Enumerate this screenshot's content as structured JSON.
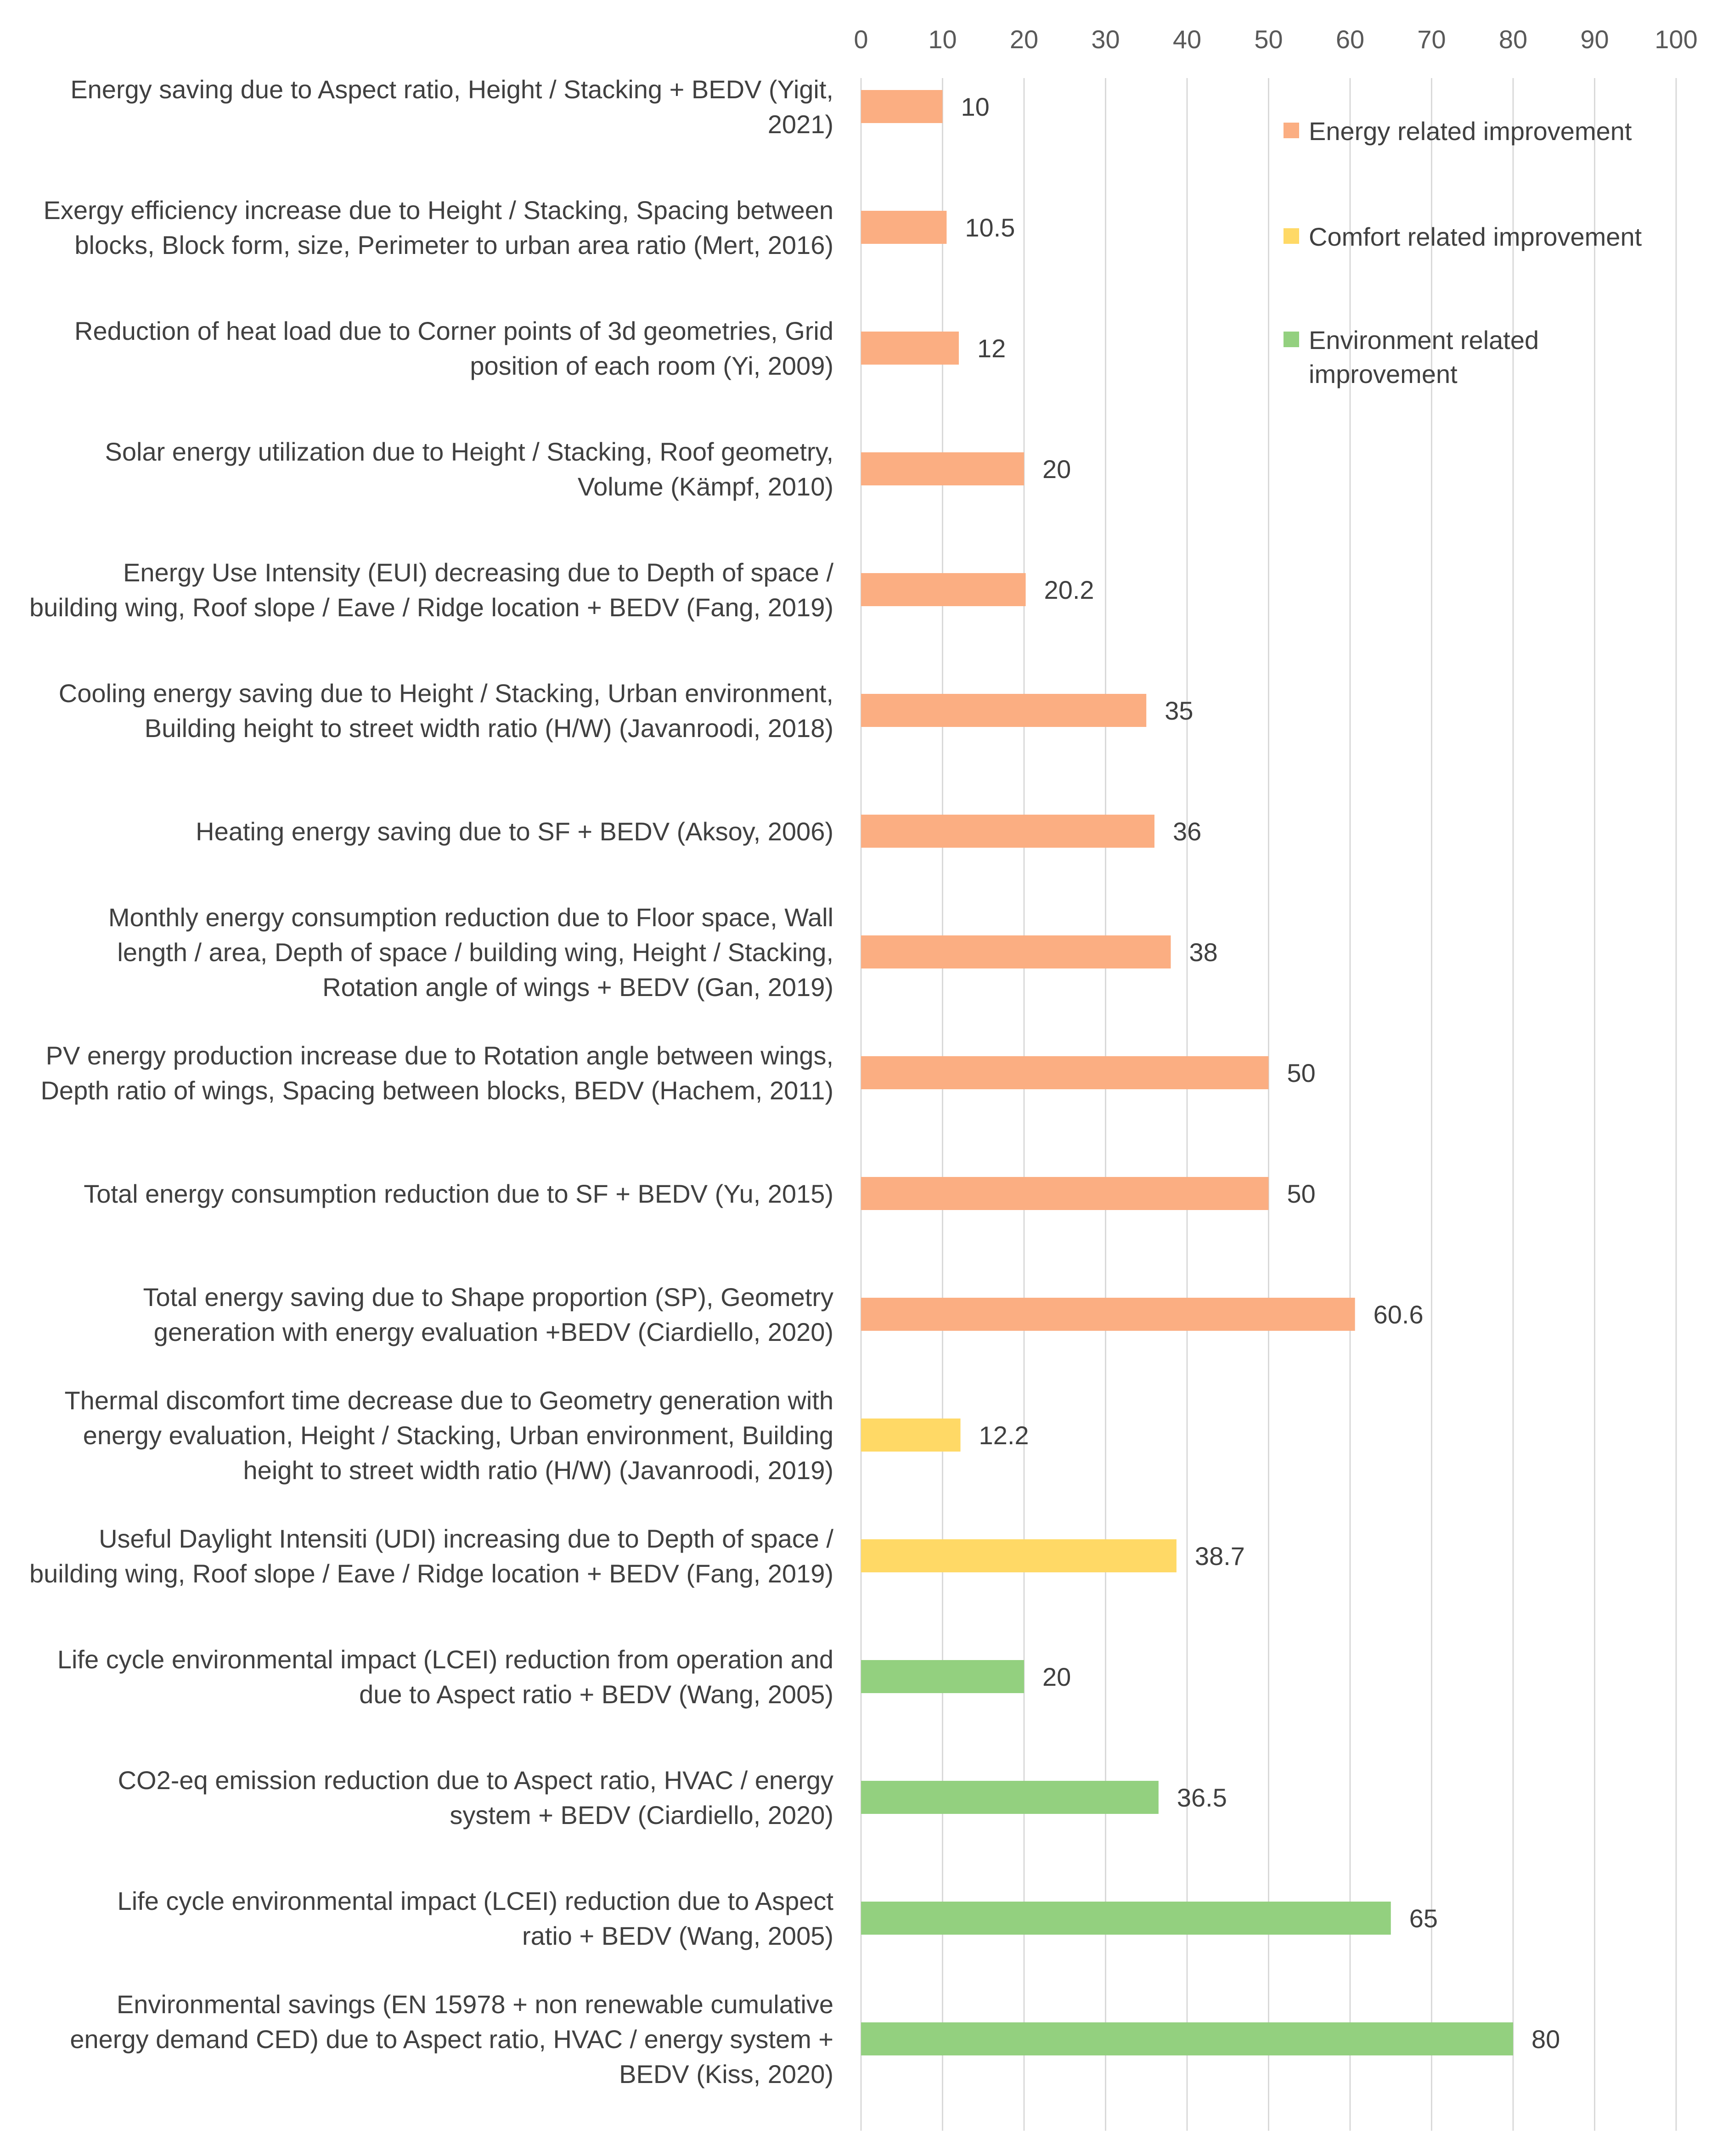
{
  "chart_data": {
    "type": "bar",
    "orientation": "horizontal",
    "title": "",
    "xlabel": "",
    "ylabel": "",
    "xlim": [
      0,
      100
    ],
    "x_ticks": [
      "0",
      "10",
      "20",
      "30",
      "40",
      "50",
      "60",
      "70",
      "80",
      "90",
      "100"
    ],
    "x_tick_values": [
      0,
      10,
      20,
      30,
      40,
      50,
      60,
      70,
      80,
      90,
      100
    ],
    "x_axis_position": "top",
    "grid": true,
    "legend_position": "top-right",
    "series": [
      {
        "name": "Energy related improvement",
        "color": "#fbae82"
      },
      {
        "name": "Comfort related improvement",
        "color": "#ffd966"
      },
      {
        "name": "Environment related improvement",
        "color": "#93d07f"
      }
    ],
    "bars": [
      {
        "label_lines": [
          "Energy saving due to Aspect ratio, Height / Stacking + BEDV (Yigit,",
          "2021)"
        ],
        "value": 10,
        "value_label": "10",
        "series": 0
      },
      {
        "label_lines": [
          "Exergy efficiency increase due to Height / Stacking, Spacing between",
          "blocks, Block form, size,  Perimeter to urban area ratio (Mert, 2016)"
        ],
        "value": 10.5,
        "value_label": "10.5",
        "series": 0
      },
      {
        "label_lines": [
          "Reduction of heat load due to Corner points of 3d geometries, Grid",
          "position of each room (Yi, 2009)"
        ],
        "value": 12,
        "value_label": "12",
        "series": 0
      },
      {
        "label_lines": [
          "Solar energy utilization due to Height / Stacking, Roof geometry,",
          "Volume (Kämpf, 2010)"
        ],
        "value": 20,
        "value_label": "20",
        "series": 0
      },
      {
        "label_lines": [
          "Energy Use Intensity (EUI) decreasing due to Depth of space /",
          "building wing, Roof slope / Eave / Ridge location + BEDV (Fang, 2019)"
        ],
        "value": 20.2,
        "value_label": "20.2",
        "series": 0
      },
      {
        "label_lines": [
          "Cooling energy saving due to Height / Stacking, Urban environment,",
          "Building height to street width ratio (H/W) (Javanroodi, 2018)"
        ],
        "value": 35,
        "value_label": "35",
        "series": 0
      },
      {
        "label_lines": [
          "Heating energy saving due to SF + BEDV (Aksoy, 2006)"
        ],
        "value": 36,
        "value_label": "36",
        "series": 0
      },
      {
        "label_lines": [
          "Monthly energy consumption reduction due to Floor space, Wall",
          "length / area, Depth of space / building wing,  Height / Stacking,",
          "Rotation angle of wings + BEDV (Gan, 2019)"
        ],
        "value": 38,
        "value_label": "38",
        "series": 0
      },
      {
        "label_lines": [
          "PV energy production increase due to Rotation angle between wings,",
          "Depth ratio of wings, Spacing between blocks, BEDV (Hachem, 2011)"
        ],
        "value": 50,
        "value_label": "50",
        "series": 0
      },
      {
        "label_lines": [
          "Total energy consumption reduction due to SF + BEDV (Yu, 2015)"
        ],
        "value": 50,
        "value_label": "50",
        "series": 0
      },
      {
        "label_lines": [
          "Total energy saving due to Shape proportion (SP), Geometry",
          "generation with energy evaluation +BEDV (Ciardiello, 2020)"
        ],
        "value": 60.6,
        "value_label": "60.6",
        "series": 0
      },
      {
        "label_lines": [
          "Thermal discomfort time decrease due to Geometry generation with",
          "energy evaluation, Height / Stacking, Urban environment, Building",
          "height to street width ratio (H/W)  (Javanroodi, 2019)"
        ],
        "value": 12.2,
        "value_label": "12.2",
        "series": 1
      },
      {
        "label_lines": [
          "Useful Daylight Intensiti (UDI) increasing due to Depth of space /",
          "building wing, Roof slope / Eave / Ridge location + BEDV (Fang, 2019)"
        ],
        "value": 38.7,
        "value_label": "38.7",
        "series": 1
      },
      {
        "label_lines": [
          "Life cycle environmental impact (LCEI) reduction from operation and",
          "due to Aspect ratio + BEDV (Wang, 2005)"
        ],
        "value": 20,
        "value_label": "20",
        "series": 2
      },
      {
        "label_lines": [
          "CO2-eq emission reduction due to Aspect ratio, HVAC / energy",
          "system + BEDV (Ciardiello, 2020)"
        ],
        "value": 36.5,
        "value_label": "36.5",
        "series": 2
      },
      {
        "label_lines": [
          "Life cycle environmental impact (LCEI) reduction due to Aspect",
          "ratio + BEDV (Wang, 2005)"
        ],
        "value": 65,
        "value_label": "65",
        "series": 2
      },
      {
        "label_lines": [
          "Environmental savings (EN 15978 + non renewable cumulative",
          "energy demand CED) due to Aspect ratio, HVAC / energy system +",
          "BEDV (Kiss, 2020)"
        ],
        "value": 80,
        "value_label": "80",
        "series": 2
      }
    ],
    "legend_lines": [
      [
        "Energy related improvement"
      ],
      [
        "Comfort related improvement"
      ],
      [
        "Environment related",
        "improvement"
      ]
    ]
  }
}
